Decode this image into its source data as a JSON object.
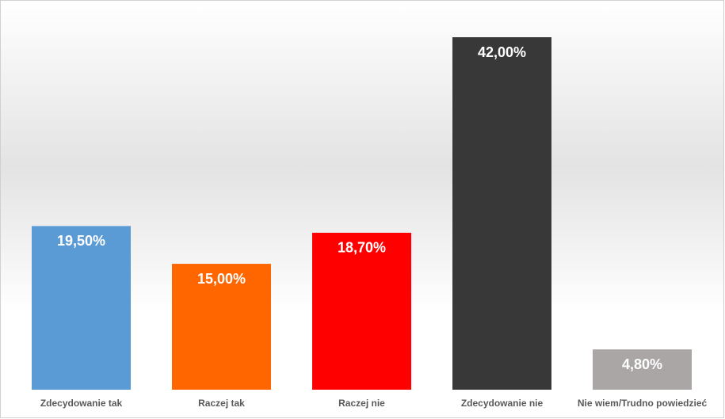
{
  "chart_data": {
    "type": "bar",
    "categories": [
      "Zdecydowanie tak",
      "Raczej tak",
      "Raczej nie",
      "Zdecydowanie nie",
      "Nie wiem/Trudno powiedzieć"
    ],
    "values": [
      19.5,
      15.0,
      18.7,
      42.0,
      4.8
    ],
    "value_labels": [
      "19,50%",
      "15,00%",
      "18,70%",
      "42,00%",
      "4,80%"
    ],
    "colors": [
      "#5b9bd5",
      "#ff6600",
      "#ff0000",
      "#383838",
      "#aaa6a6"
    ]
  }
}
